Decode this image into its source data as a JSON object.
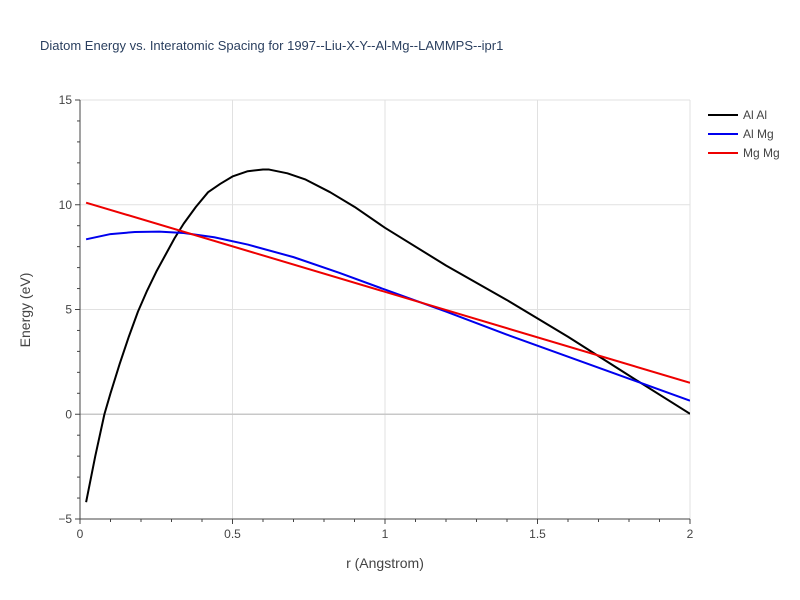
{
  "chart_data": {
    "type": "line",
    "title": "Diatom Energy vs. Interatomic Spacing for 1997--Liu-X-Y--Al-Mg--LAMMPS--ipr1",
    "xlabel": "r (Angstrom)",
    "ylabel": "Energy (eV)",
    "xlim": [
      0,
      2
    ],
    "ylim": [
      -5,
      15
    ],
    "xticks": [
      0,
      0.5,
      1,
      1.5,
      2
    ],
    "xtick_labels": [
      "0",
      "0.5",
      "1",
      "1.5",
      "2"
    ],
    "yticks": [
      -5,
      0,
      5,
      10,
      15
    ],
    "ytick_labels": [
      "−5",
      "0",
      "5",
      "10",
      "15"
    ],
    "grid": true,
    "legend_position": "top-right",
    "series": [
      {
        "name": "Al Al",
        "color": "#000000",
        "x": [
          0.02,
          0.05,
          0.08,
          0.1,
          0.13,
          0.16,
          0.19,
          0.22,
          0.25,
          0.28,
          0.31,
          0.34,
          0.38,
          0.42,
          0.46,
          0.5,
          0.55,
          0.6,
          0.62,
          0.68,
          0.74,
          0.82,
          0.9,
          1.0,
          1.2,
          1.4,
          1.6,
          1.8,
          2.0
        ],
        "y": [
          -4.2,
          -2.0,
          0.0,
          1.0,
          2.4,
          3.7,
          4.9,
          5.9,
          6.8,
          7.6,
          8.4,
          9.1,
          9.9,
          10.6,
          11.0,
          11.35,
          11.6,
          11.68,
          11.68,
          11.5,
          11.2,
          10.6,
          9.9,
          8.9,
          7.1,
          5.45,
          3.7,
          1.85,
          0.02
        ]
      },
      {
        "name": "Al Mg",
        "color": "#0000ee",
        "x": [
          0.02,
          0.1,
          0.18,
          0.26,
          0.34,
          0.44,
          0.55,
          0.7,
          0.85,
          1.0,
          1.2,
          1.4,
          1.6,
          1.8,
          2.0
        ],
        "y": [
          8.35,
          8.6,
          8.7,
          8.72,
          8.65,
          8.45,
          8.1,
          7.5,
          6.75,
          5.95,
          4.9,
          3.8,
          2.75,
          1.7,
          0.65
        ]
      },
      {
        "name": "Mg Mg",
        "color": "#ee0000",
        "x": [
          0.02,
          2.0
        ],
        "y": [
          10.1,
          1.5
        ]
      }
    ]
  }
}
